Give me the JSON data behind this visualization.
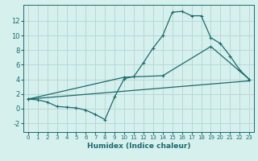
{
  "xlabel": "Humidex (Indice chaleur)",
  "bg_color": "#d6f0ee",
  "grid_color": "#b8d8d5",
  "line_color": "#1a6b6b",
  "xlim": [
    -0.5,
    23.5
  ],
  "ylim": [
    -3.2,
    14.2
  ],
  "xtick_vals": [
    0,
    1,
    2,
    3,
    4,
    5,
    6,
    7,
    8,
    9,
    10,
    11,
    12,
    13,
    14,
    15,
    16,
    17,
    18,
    19,
    20,
    21,
    22,
    23
  ],
  "ytick_vals": [
    -2,
    0,
    2,
    4,
    6,
    8,
    10,
    12
  ],
  "line1_x": [
    0,
    1,
    2,
    3,
    4,
    5,
    6,
    7,
    8,
    9,
    10,
    11,
    12,
    13,
    14,
    15,
    16,
    17,
    18,
    19,
    20,
    21,
    22,
    23
  ],
  "line1_y": [
    1.3,
    1.2,
    0.9,
    0.3,
    0.2,
    0.1,
    -0.2,
    -0.8,
    -1.5,
    1.6,
    4.1,
    4.4,
    6.3,
    8.3,
    10.0,
    13.2,
    13.3,
    12.7,
    12.7,
    9.7,
    8.9,
    7.2,
    5.3,
    4.0
  ],
  "line2_x": [
    0,
    23
  ],
  "line2_y": [
    1.3,
    3.8
  ],
  "line3_x": [
    0,
    10,
    14,
    19,
    23
  ],
  "line3_y": [
    1.3,
    4.3,
    4.5,
    8.5,
    4.0
  ]
}
